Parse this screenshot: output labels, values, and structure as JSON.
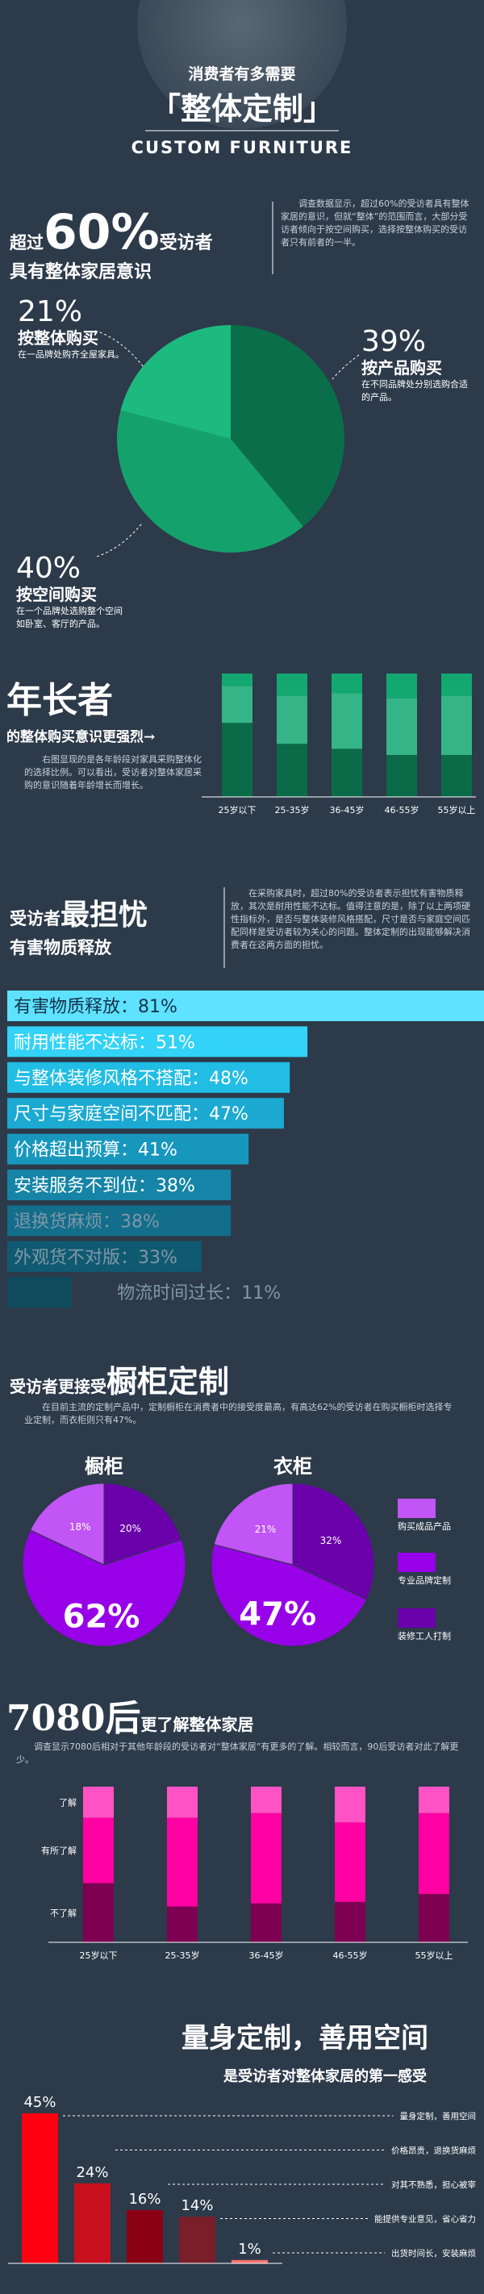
{
  "header": {
    "title": "消费者有多需要",
    "main": "「整体定制」",
    "english": "CUSTOM FURNITURE"
  },
  "chart_data": [
    {
      "type": "pie",
      "title_prefix": "超过",
      "title_highlight": "60%",
      "title_suffix": "受访者",
      "subtitle": "具有整体家居意识",
      "note": "调查数据显示，超过60%的受访者具有整体家居的意识，但就“整体”的范围而言，大部分受访者倾向于按空间购买，选择按整体购买的受访者只有前者的一半。",
      "categories": [
        "按产品购买",
        "按空间购买",
        "按整体购买"
      ],
      "values": [
        39,
        40,
        21
      ],
      "value_labels": [
        "39%",
        "40%",
        "21%"
      ],
      "descriptions": [
        "在不同品牌处分别选购合适的产品。",
        "在一个品牌处选购整个空间如卧室、客厅的产品。",
        "在一品牌处购齐全屋家具。"
      ],
      "colors": [
        "#0b6e4a",
        "#15a16c",
        "#1cba7e"
      ]
    },
    {
      "type": "stacked-bar",
      "title": "年长者",
      "subtitle": "的整体购买意识更强烈→",
      "note": "右图显现的是各年龄段对家具采购整体化的选择比例。可以看出，受访者对整体家居采购的意识随着年龄增长而增长。",
      "categories": [
        "25岁以下",
        "25-35岁",
        "36-45岁",
        "46-55岁",
        "55岁以上"
      ],
      "series": [
        {
          "color": "#0b6b48",
          "values": [
            60,
            43,
            39,
            34,
            34
          ]
        },
        {
          "color": "#35b487",
          "values": [
            30,
            39,
            45,
            46,
            48
          ]
        },
        {
          "color": "#12a870",
          "values": [
            10,
            18,
            16,
            20,
            18
          ]
        }
      ],
      "ylim": [
        0,
        100
      ]
    },
    {
      "type": "hbar",
      "title_prefix": "受访者",
      "title_highlight": "最担忧",
      "subtitle": "有害物质释放",
      "note": "在采购家具时，超过80%的受访者表示担忧有害物质释放，其次是耐用性能不达标。值得注意的是，除了以上两项硬性指标外，是否与整体装修风格搭配，尺寸是否与家庭空间匹配同样是受访者较为关心的问题。整体定制的出现能够解决消费者在这两方面的担忧。",
      "categories": [
        "有害物质释放：",
        "耐用性能不达标：",
        "与整体装修风格不搭配：",
        "尺寸与家庭空间不匹配：",
        "价格超出预算：",
        "安装服务不到位：",
        "退换货麻烦：",
        "外观货不对版：",
        "物流时间过长："
      ],
      "values": [
        81,
        51,
        48,
        47,
        41,
        38,
        38,
        33,
        11
      ],
      "value_labels": [
        "81%",
        "51%",
        "48%",
        "47%",
        "41%",
        "38%",
        "38%",
        "33%",
        "11%"
      ],
      "colors": [
        "#5ee2ff",
        "#33d2f7",
        "#22bde4",
        "#1caad2",
        "#1897bd",
        "#1584a6",
        "#126e8b",
        "#105a71",
        "#0f4b5c"
      ],
      "xlim": [
        0,
        81
      ]
    },
    {
      "type": "pie-pair",
      "title_prefix": "受访者更接受",
      "title_highlight": "橱柜定制",
      "note": "在目前主流的定制产品中，定制橱柜在消费者中的接受度最高，有高达62%的受访者在购买橱柜时选择专业定制，而衣柜则只有47%。",
      "categories": [
        "购买成品产品",
        "专业品牌定制",
        "装修工人打制"
      ],
      "colors": [
        "#c155f5",
        "#9800e8",
        "#6a00aa"
      ],
      "pies": [
        {
          "name": "橱柜",
          "values": [
            18,
            62,
            20
          ],
          "value_labels": [
            "18%",
            "62%",
            "20%"
          ]
        },
        {
          "name": "衣柜",
          "values": [
            21,
            47,
            32
          ],
          "value_labels": [
            "21%",
            "47%",
            "32%"
          ]
        }
      ]
    },
    {
      "type": "stacked-bar",
      "title": "7080后",
      "subtitle": "更了解整体家居",
      "note": "调查显示7080后相对于其他年龄段的受访者对“整体家居”有更多的了解。相较而言，90后受访者对此了解更少。",
      "categories": [
        "25岁以下",
        "25-35岁",
        "36-45岁",
        "46-55岁",
        "55岁以上"
      ],
      "series": [
        {
          "name": "不了解",
          "color": "#7d0052",
          "values": [
            38,
            23,
            25,
            26,
            31
          ]
        },
        {
          "name": "有所了解",
          "color": "#ff00a2",
          "values": [
            42,
            57,
            58,
            51,
            52
          ]
        },
        {
          "name": "了解",
          "color": "#ff52c4",
          "values": [
            20,
            20,
            17,
            23,
            17
          ]
        }
      ],
      "ylim": [
        0,
        100
      ]
    },
    {
      "type": "bar",
      "title": "量身定制，善用空间",
      "subtitle": "是受访者对整体家居的第一感受",
      "categories": [
        "量身定制，善用空间",
        "价格昂贵，退换货麻烦",
        "对其不熟悉，担心被宰",
        "能提供专业意见，省心省力",
        "出货时间长，安装麻烦"
      ],
      "values": [
        45,
        24,
        16,
        14,
        1
      ],
      "value_labels": [
        "45%",
        "24%",
        "16%",
        "14%",
        "1%"
      ],
      "colors": [
        "#ff0010",
        "#c8101e",
        "#8c0014",
        "#7a1e2a",
        "#ff7070"
      ],
      "ylim": [
        0,
        45
      ]
    }
  ]
}
